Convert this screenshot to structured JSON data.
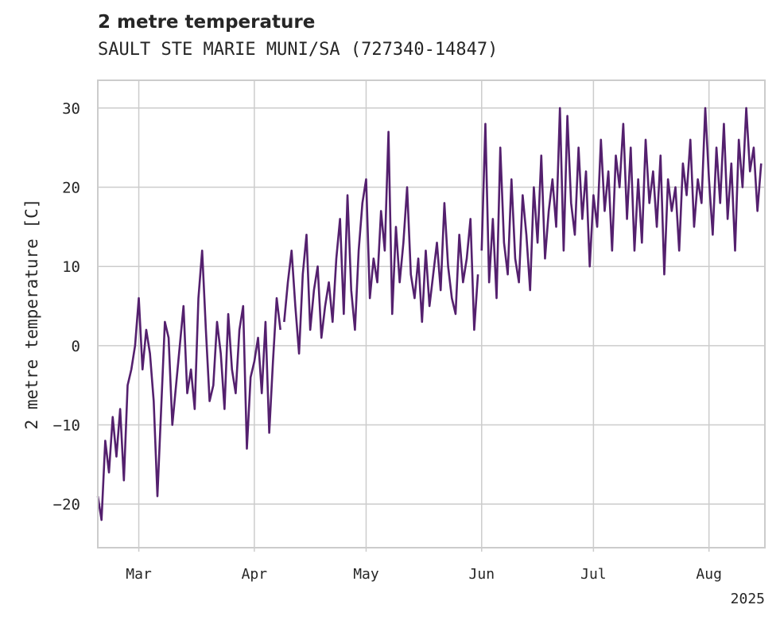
{
  "chart_data": {
    "type": "line",
    "title": "2 metre temperature",
    "subtitle": "SAULT STE MARIE MUNI/SA (727340-14847)",
    "ylabel": "2 metre temperature [C]",
    "xlabel": "",
    "year_label": "2025",
    "ylim": [
      -25.5,
      33.5
    ],
    "yticks": [
      30,
      20,
      10,
      0,
      -10,
      -20
    ],
    "ytick_labels": [
      "30",
      "20",
      "10",
      "0",
      "−10",
      "−20"
    ],
    "xlim": [
      "2025-02-18",
      "2025-08-16"
    ],
    "xticks": [
      "2025-03-01",
      "2025-04-01",
      "2025-05-01",
      "2025-06-01",
      "2025-07-01",
      "2025-08-01"
    ],
    "xtick_labels": [
      "Mar",
      "Apr",
      "May",
      "Jun",
      "Jul",
      "Aug"
    ],
    "grid": true,
    "line_color": "#54206e",
    "grid_color": "#cccccc",
    "series": [
      {
        "segments": [
          {
            "x": [
              "2025-02-18",
              "2025-02-19",
              "2025-02-20",
              "2025-02-21",
              "2025-02-22",
              "2025-02-23",
              "2025-02-24",
              "2025-02-25",
              "2025-02-26",
              "2025-02-27",
              "2025-02-28",
              "2025-03-01",
              "2025-03-02",
              "2025-03-03",
              "2025-03-04",
              "2025-03-05",
              "2025-03-06",
              "2025-03-07",
              "2025-03-08",
              "2025-03-09",
              "2025-03-10",
              "2025-03-11",
              "2025-03-12",
              "2025-03-13",
              "2025-03-14",
              "2025-03-15",
              "2025-03-16",
              "2025-03-17",
              "2025-03-18",
              "2025-03-19",
              "2025-03-20",
              "2025-03-21",
              "2025-03-22",
              "2025-03-23",
              "2025-03-24",
              "2025-03-25",
              "2025-03-26",
              "2025-03-27",
              "2025-03-28",
              "2025-03-29",
              "2025-03-30",
              "2025-03-31",
              "2025-04-01",
              "2025-04-02",
              "2025-04-03",
              "2025-04-04",
              "2025-04-05",
              "2025-04-06",
              "2025-04-07",
              "2025-04-08"
            ],
            "y": [
              -19,
              -22,
              -12,
              -16,
              -9,
              -14,
              -8,
              -17,
              -5,
              -3,
              0,
              6,
              -3,
              2,
              -1,
              -7,
              -19,
              -8,
              3,
              1,
              -10,
              -5,
              0,
              5,
              -6,
              -3,
              -8,
              6,
              12,
              2,
              -7,
              -5,
              3,
              -1,
              -8,
              4,
              -3,
              -6,
              2,
              5,
              -13,
              -4,
              -2,
              1,
              -6,
              3,
              -11,
              -2,
              6,
              2
            ]
          },
          {
            "x": [
              "2025-04-09",
              "2025-04-10",
              "2025-04-11",
              "2025-04-12",
              "2025-04-13",
              "2025-04-14",
              "2025-04-15",
              "2025-04-16",
              "2025-04-17",
              "2025-04-18",
              "2025-04-19",
              "2025-04-20",
              "2025-04-21",
              "2025-04-22",
              "2025-04-23",
              "2025-04-24",
              "2025-04-25",
              "2025-04-26",
              "2025-04-27",
              "2025-04-28",
              "2025-04-29",
              "2025-04-30",
              "2025-05-01",
              "2025-05-02",
              "2025-05-03",
              "2025-05-04",
              "2025-05-05",
              "2025-05-06",
              "2025-05-07",
              "2025-05-08",
              "2025-05-09",
              "2025-05-10",
              "2025-05-11",
              "2025-05-12",
              "2025-05-13",
              "2025-05-14",
              "2025-05-15",
              "2025-05-16",
              "2025-05-17",
              "2025-05-18",
              "2025-05-19",
              "2025-05-20",
              "2025-05-21",
              "2025-05-22",
              "2025-05-23",
              "2025-05-24",
              "2025-05-25",
              "2025-05-26",
              "2025-05-27",
              "2025-05-28",
              "2025-05-29",
              "2025-05-30",
              "2025-05-31"
            ],
            "y": [
              3,
              8,
              12,
              5,
              -1,
              9,
              14,
              2,
              7,
              10,
              1,
              5,
              8,
              3,
              11,
              16,
              4,
              19,
              7,
              2,
              12,
              18,
              21,
              6,
              11,
              8,
              17,
              12,
              27,
              4,
              15,
              8,
              13,
              20,
              9,
              6,
              11,
              3,
              12,
              5,
              9,
              13,
              7,
              18,
              10,
              6,
              4,
              14,
              8,
              11,
              16,
              2,
              9
            ]
          },
          {
            "x": [
              "2025-06-01",
              "2025-06-02",
              "2025-06-03",
              "2025-06-04",
              "2025-06-05",
              "2025-06-06",
              "2025-06-07",
              "2025-06-08",
              "2025-06-09",
              "2025-06-10",
              "2025-06-11",
              "2025-06-12",
              "2025-06-13",
              "2025-06-14",
              "2025-06-15",
              "2025-06-16",
              "2025-06-17",
              "2025-06-18",
              "2025-06-19",
              "2025-06-20",
              "2025-06-21",
              "2025-06-22",
              "2025-06-23",
              "2025-06-24",
              "2025-06-25",
              "2025-06-26",
              "2025-06-27",
              "2025-06-28",
              "2025-06-29",
              "2025-06-30",
              "2025-07-01",
              "2025-07-02",
              "2025-07-03",
              "2025-07-04",
              "2025-07-05",
              "2025-07-06",
              "2025-07-07",
              "2025-07-08",
              "2025-07-09",
              "2025-07-10",
              "2025-07-11",
              "2025-07-12",
              "2025-07-13",
              "2025-07-14",
              "2025-07-15",
              "2025-07-16",
              "2025-07-17",
              "2025-07-18",
              "2025-07-19",
              "2025-07-20",
              "2025-07-21",
              "2025-07-22",
              "2025-07-23",
              "2025-07-24",
              "2025-07-25",
              "2025-07-26",
              "2025-07-27",
              "2025-07-28",
              "2025-07-29",
              "2025-07-30",
              "2025-07-31",
              "2025-08-01",
              "2025-08-02",
              "2025-08-03",
              "2025-08-04",
              "2025-08-05",
              "2025-08-06",
              "2025-08-07",
              "2025-08-08",
              "2025-08-09",
              "2025-08-10",
              "2025-08-11",
              "2025-08-12",
              "2025-08-13",
              "2025-08-14",
              "2025-08-15"
            ],
            "y": [
              12,
              28,
              8,
              16,
              6,
              25,
              13,
              9,
              21,
              11,
              8,
              19,
              14,
              7,
              20,
              13,
              24,
              11,
              17,
              21,
              15,
              30,
              12,
              29,
              18,
              14,
              25,
              16,
              22,
              10,
              19,
              15,
              26,
              17,
              22,
              12,
              24,
              20,
              28,
              16,
              25,
              12,
              21,
              13,
              26,
              18,
              22,
              15,
              24,
              9,
              21,
              17,
              20,
              12,
              23,
              19,
              26,
              15,
              21,
              18,
              30,
              21,
              14,
              25,
              18,
              28,
              16,
              23,
              12,
              26,
              20,
              30,
              22,
              25,
              17,
              23
            ]
          }
        ]
      }
    ]
  }
}
